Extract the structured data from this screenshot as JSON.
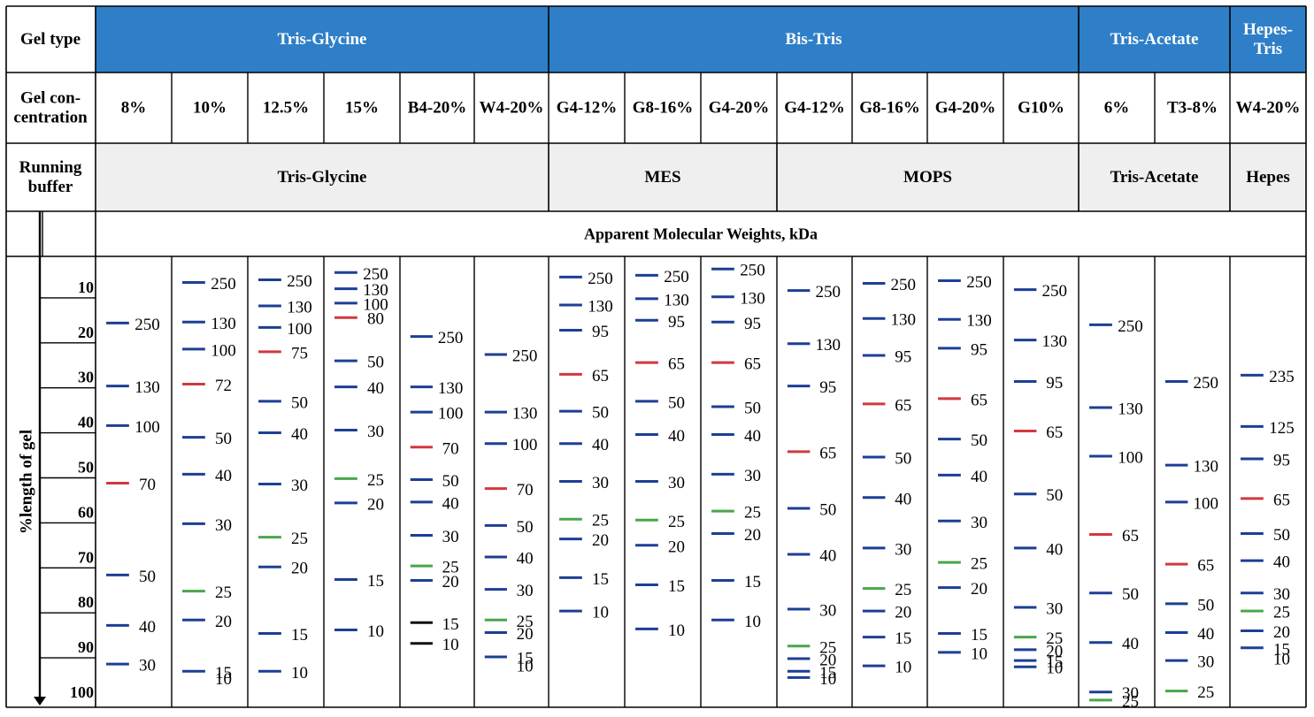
{
  "header": {
    "row1_label": "Gel type",
    "row2_label": [
      "Gel con-",
      "centration"
    ],
    "row3_label": [
      "Running",
      "buffer"
    ],
    "apparent_mw": "Apparent Molecular Weights, kDa",
    "yaxis_label": "%length of gel",
    "yticks": [
      "10",
      "20",
      "30",
      "40",
      "50",
      "60",
      "70",
      "80",
      "90",
      "100"
    ]
  },
  "gel_types": [
    {
      "label": [
        "Tris-Glycine"
      ],
      "span": [
        0,
        5
      ]
    },
    {
      "label": [
        "Bis-Tris"
      ],
      "span": [
        6,
        12
      ]
    },
    {
      "label": [
        "Tris-Acetate"
      ],
      "span": [
        13,
        14
      ]
    },
    {
      "label": [
        "Hepes-",
        "Tris"
      ],
      "span": [
        15,
        15
      ]
    }
  ],
  "buffers": [
    {
      "label": "Tris-Glycine",
      "span": [
        0,
        5
      ]
    },
    {
      "label": "MES",
      "span": [
        6,
        8
      ]
    },
    {
      "label": "MOPS",
      "span": [
        9,
        12
      ]
    },
    {
      "label": "Tris-Acetate",
      "span": [
        13,
        14
      ]
    },
    {
      "label": "Hepes",
      "span": [
        15,
        15
      ]
    }
  ],
  "colors": {
    "gel_type_bg": "#2e7fc8",
    "buffer_bg": "#efefef",
    "blue_band": "#1c3f94",
    "red_band": "#d0393f",
    "green_band": "#4aa64a",
    "black_band": "#111111"
  },
  "chart_data": {
    "type": "table",
    "columns": [
      {
        "conc": "8%",
        "bands": [
          {
            "kda": "250",
            "pos": 14.6,
            "color": "blue"
          },
          {
            "kda": "130",
            "pos": 28.6,
            "color": "blue"
          },
          {
            "kda": "100",
            "pos": 37.4,
            "color": "blue"
          },
          {
            "kda": "70",
            "pos": 50.2,
            "color": "red"
          },
          {
            "kda": "50",
            "pos": 70.6,
            "color": "blue"
          },
          {
            "kda": "40",
            "pos": 81.8,
            "color": "blue"
          },
          {
            "kda": "30",
            "pos": 90.4,
            "color": "blue"
          }
        ]
      },
      {
        "conc": "10%",
        "bands": [
          {
            "kda": "250",
            "pos": 5.6,
            "color": "blue"
          },
          {
            "kda": "130",
            "pos": 14.4,
            "color": "blue"
          },
          {
            "kda": "100",
            "pos": 20.4,
            "color": "blue"
          },
          {
            "kda": "72",
            "pos": 28.2,
            "color": "red"
          },
          {
            "kda": "50",
            "pos": 40.0,
            "color": "blue"
          },
          {
            "kda": "40",
            "pos": 48.2,
            "color": "blue"
          },
          {
            "kda": "30",
            "pos": 59.2,
            "color": "blue"
          },
          {
            "kda": "25",
            "pos": 74.2,
            "color": "green"
          },
          {
            "kda": "20",
            "pos": 80.6,
            "color": "blue"
          },
          {
            "kda": "15",
            "pos": 92.0,
            "color": "blue"
          },
          {
            "kda": "10",
            "pos": 93.4,
            "color": "blue",
            "line": false
          }
        ]
      },
      {
        "conc": "12.5%",
        "bands": [
          {
            "kda": "250",
            "pos": 5.0,
            "color": "blue"
          },
          {
            "kda": "130",
            "pos": 10.8,
            "color": "blue"
          },
          {
            "kda": "100",
            "pos": 15.6,
            "color": "blue"
          },
          {
            "kda": "75",
            "pos": 21.0,
            "color": "red"
          },
          {
            "kda": "50",
            "pos": 32.0,
            "color": "blue"
          },
          {
            "kda": "40",
            "pos": 39.0,
            "color": "blue"
          },
          {
            "kda": "30",
            "pos": 50.4,
            "color": "blue"
          },
          {
            "kda": "25",
            "pos": 62.2,
            "color": "green"
          },
          {
            "kda": "20",
            "pos": 68.8,
            "color": "blue"
          },
          {
            "kda": "15",
            "pos": 83.6,
            "color": "blue"
          },
          {
            "kda": "10",
            "pos": 92.0,
            "color": "blue"
          }
        ]
      },
      {
        "conc": "15%",
        "bands": [
          {
            "kda": "250",
            "pos": 3.4,
            "color": "blue"
          },
          {
            "kda": "130",
            "pos": 7.0,
            "color": "blue"
          },
          {
            "kda": "100",
            "pos": 10.2,
            "color": "blue"
          },
          {
            "kda": "80",
            "pos": 13.4,
            "color": "red"
          },
          {
            "kda": "50",
            "pos": 23.0,
            "color": "blue"
          },
          {
            "kda": "40",
            "pos": 28.8,
            "color": "blue"
          },
          {
            "kda": "30",
            "pos": 38.4,
            "color": "blue"
          },
          {
            "kda": "25",
            "pos": 49.2,
            "color": "green"
          },
          {
            "kda": "20",
            "pos": 54.6,
            "color": "blue"
          },
          {
            "kda": "15",
            "pos": 71.6,
            "color": "blue"
          },
          {
            "kda": "10",
            "pos": 82.8,
            "color": "blue"
          }
        ]
      },
      {
        "conc": "B4-20%",
        "bands": [
          {
            "kda": "250",
            "pos": 17.6,
            "color": "blue"
          },
          {
            "kda": "130",
            "pos": 28.8,
            "color": "blue"
          },
          {
            "kda": "100",
            "pos": 34.4,
            "color": "blue"
          },
          {
            "kda": "70",
            "pos": 42.2,
            "color": "red"
          },
          {
            "kda": "50",
            "pos": 49.4,
            "color": "blue"
          },
          {
            "kda": "40",
            "pos": 54.4,
            "color": "blue"
          },
          {
            "kda": "30",
            "pos": 61.8,
            "color": "blue"
          },
          {
            "kda": "25",
            "pos": 68.6,
            "color": "green"
          },
          {
            "kda": "20",
            "pos": 71.8,
            "color": "blue"
          },
          {
            "kda": "15",
            "pos": 81.2,
            "color": "black"
          },
          {
            "kda": "10",
            "pos": 85.8,
            "color": "black"
          }
        ]
      },
      {
        "conc": "W4-20%",
        "bands": [
          {
            "kda": "250",
            "pos": 21.6,
            "color": "blue"
          },
          {
            "kda": "130",
            "pos": 34.4,
            "color": "blue"
          },
          {
            "kda": "100",
            "pos": 41.4,
            "color": "blue"
          },
          {
            "kda": "70",
            "pos": 51.4,
            "color": "red"
          },
          {
            "kda": "50",
            "pos": 59.6,
            "color": "blue"
          },
          {
            "kda": "40",
            "pos": 66.6,
            "color": "blue"
          },
          {
            "kda": "30",
            "pos": 73.8,
            "color": "blue"
          },
          {
            "kda": "25",
            "pos": 80.6,
            "color": "green"
          },
          {
            "kda": "20",
            "pos": 83.4,
            "color": "blue"
          },
          {
            "kda": "15",
            "pos": 88.8,
            "color": "blue"
          },
          {
            "kda": "10",
            "pos": 90.6,
            "color": "blue",
            "line": false
          }
        ]
      },
      {
        "conc": "G4-12%",
        "bands": [
          {
            "kda": "250",
            "pos": 4.4,
            "color": "blue"
          },
          {
            "kda": "130",
            "pos": 10.6,
            "color": "blue"
          },
          {
            "kda": "95",
            "pos": 16.2,
            "color": "blue"
          },
          {
            "kda": "65",
            "pos": 26.0,
            "color": "red"
          },
          {
            "kda": "50",
            "pos": 34.2,
            "color": "blue"
          },
          {
            "kda": "40",
            "pos": 41.4,
            "color": "blue"
          },
          {
            "kda": "30",
            "pos": 49.8,
            "color": "blue"
          },
          {
            "kda": "25",
            "pos": 58.2,
            "color": "green"
          },
          {
            "kda": "20",
            "pos": 62.6,
            "color": "blue"
          },
          {
            "kda": "15",
            "pos": 71.2,
            "color": "blue"
          },
          {
            "kda": "10",
            "pos": 78.6,
            "color": "blue"
          }
        ]
      },
      {
        "conc": "G8-16%",
        "bands": [
          {
            "kda": "250",
            "pos": 4.0,
            "color": "blue"
          },
          {
            "kda": "130",
            "pos": 9.2,
            "color": "blue"
          },
          {
            "kda": "95",
            "pos": 14.0,
            "color": "blue"
          },
          {
            "kda": "65",
            "pos": 23.4,
            "color": "red"
          },
          {
            "kda": "50",
            "pos": 32.0,
            "color": "blue"
          },
          {
            "kda": "40",
            "pos": 39.4,
            "color": "blue"
          },
          {
            "kda": "30",
            "pos": 49.8,
            "color": "blue"
          },
          {
            "kda": "25",
            "pos": 58.4,
            "color": "green"
          },
          {
            "kda": "20",
            "pos": 64.0,
            "color": "blue"
          },
          {
            "kda": "15",
            "pos": 72.8,
            "color": "blue"
          },
          {
            "kda": "10",
            "pos": 82.6,
            "color": "blue"
          }
        ]
      },
      {
        "conc": "G4-20%",
        "bands": [
          {
            "kda": "250",
            "pos": 2.6,
            "color": "blue"
          },
          {
            "kda": "130",
            "pos": 8.8,
            "color": "blue"
          },
          {
            "kda": "95",
            "pos": 14.4,
            "color": "blue"
          },
          {
            "kda": "65",
            "pos": 23.4,
            "color": "red"
          },
          {
            "kda": "50",
            "pos": 33.2,
            "color": "blue"
          },
          {
            "kda": "40",
            "pos": 39.4,
            "color": "blue"
          },
          {
            "kda": "30",
            "pos": 48.2,
            "color": "blue"
          },
          {
            "kda": "25",
            "pos": 56.4,
            "color": "green"
          },
          {
            "kda": "20",
            "pos": 61.4,
            "color": "blue"
          },
          {
            "kda": "15",
            "pos": 71.8,
            "color": "blue"
          },
          {
            "kda": "10",
            "pos": 80.6,
            "color": "blue"
          }
        ]
      },
      {
        "conc": "G4-12%",
        "bands": [
          {
            "kda": "250",
            "pos": 7.4,
            "color": "blue"
          },
          {
            "kda": "130",
            "pos": 19.2,
            "color": "blue"
          },
          {
            "kda": "95",
            "pos": 28.6,
            "color": "blue"
          },
          {
            "kda": "65",
            "pos": 43.2,
            "color": "red"
          },
          {
            "kda": "50",
            "pos": 55.8,
            "color": "blue"
          },
          {
            "kda": "40",
            "pos": 66.0,
            "color": "blue"
          },
          {
            "kda": "30",
            "pos": 78.2,
            "color": "blue"
          },
          {
            "kda": "25",
            "pos": 86.4,
            "color": "green"
          },
          {
            "kda": "20",
            "pos": 89.2,
            "color": "blue"
          },
          {
            "kda": "15",
            "pos": 92.0,
            "color": "blue"
          },
          {
            "kda": "10",
            "pos": 93.4,
            "color": "blue"
          }
        ]
      },
      {
        "conc": "G8-16%",
        "bands": [
          {
            "kda": "250",
            "pos": 5.8,
            "color": "blue"
          },
          {
            "kda": "130",
            "pos": 13.6,
            "color": "blue"
          },
          {
            "kda": "95",
            "pos": 21.8,
            "color": "blue"
          },
          {
            "kda": "65",
            "pos": 32.6,
            "color": "red"
          },
          {
            "kda": "50",
            "pos": 44.4,
            "color": "blue"
          },
          {
            "kda": "40",
            "pos": 53.4,
            "color": "blue"
          },
          {
            "kda": "30",
            "pos": 64.6,
            "color": "blue"
          },
          {
            "kda": "25",
            "pos": 73.6,
            "color": "green"
          },
          {
            "kda": "20",
            "pos": 78.6,
            "color": "blue"
          },
          {
            "kda": "15",
            "pos": 84.4,
            "color": "blue"
          },
          {
            "kda": "10",
            "pos": 90.8,
            "color": "blue"
          }
        ]
      },
      {
        "conc": "G4-20%",
        "bands": [
          {
            "kda": "250",
            "pos": 5.2,
            "color": "blue"
          },
          {
            "kda": "130",
            "pos": 13.8,
            "color": "blue"
          },
          {
            "kda": "95",
            "pos": 20.2,
            "color": "blue"
          },
          {
            "kda": "65",
            "pos": 31.4,
            "color": "red"
          },
          {
            "kda": "50",
            "pos": 40.4,
            "color": "blue"
          },
          {
            "kda": "40",
            "pos": 48.4,
            "color": "blue"
          },
          {
            "kda": "30",
            "pos": 58.6,
            "color": "blue"
          },
          {
            "kda": "25",
            "pos": 67.8,
            "color": "green"
          },
          {
            "kda": "20",
            "pos": 73.4,
            "color": "blue"
          },
          {
            "kda": "15",
            "pos": 83.6,
            "color": "blue"
          },
          {
            "kda": "10",
            "pos": 87.8,
            "color": "blue"
          }
        ]
      },
      {
        "conc": "G10%",
        "bands": [
          {
            "kda": "250",
            "pos": 7.2,
            "color": "blue"
          },
          {
            "kda": "130",
            "pos": 18.4,
            "color": "blue"
          },
          {
            "kda": "95",
            "pos": 27.6,
            "color": "blue"
          },
          {
            "kda": "65",
            "pos": 38.6,
            "color": "red"
          },
          {
            "kda": "50",
            "pos": 52.6,
            "color": "blue"
          },
          {
            "kda": "40",
            "pos": 64.6,
            "color": "blue"
          },
          {
            "kda": "30",
            "pos": 77.8,
            "color": "blue"
          },
          {
            "kda": "25",
            "pos": 84.4,
            "color": "green"
          },
          {
            "kda": "20",
            "pos": 87.2,
            "color": "blue"
          },
          {
            "kda": "15",
            "pos": 89.6,
            "color": "blue"
          },
          {
            "kda": "10",
            "pos": 91.0,
            "color": "blue"
          }
        ]
      },
      {
        "conc": "6%",
        "bands": [
          {
            "kda": "250",
            "pos": 15.0,
            "color": "blue"
          },
          {
            "kda": "130",
            "pos": 33.4,
            "color": "blue"
          },
          {
            "kda": "100",
            "pos": 44.2,
            "color": "blue"
          },
          {
            "kda": "65",
            "pos": 61.6,
            "color": "red"
          },
          {
            "kda": "50",
            "pos": 74.6,
            "color": "blue"
          },
          {
            "kda": "40",
            "pos": 85.6,
            "color": "blue"
          },
          {
            "kda": "30",
            "pos": 96.6,
            "color": "blue"
          },
          {
            "kda": "25",
            "pos": 98.4,
            "color": "green"
          }
        ]
      },
      {
        "conc": "T3-8%",
        "bands": [
          {
            "kda": "250",
            "pos": 27.6,
            "color": "blue"
          },
          {
            "kda": "130",
            "pos": 46.2,
            "color": "blue"
          },
          {
            "kda": "100",
            "pos": 54.4,
            "color": "blue"
          },
          {
            "kda": "65",
            "pos": 68.2,
            "color": "red"
          },
          {
            "kda": "50",
            "pos": 77.0,
            "color": "blue"
          },
          {
            "kda": "40",
            "pos": 83.4,
            "color": "blue"
          },
          {
            "kda": "30",
            "pos": 89.6,
            "color": "blue"
          },
          {
            "kda": "25",
            "pos": 96.4,
            "color": "green"
          }
        ]
      },
      {
        "conc": "W4-20%",
        "bands": [
          {
            "kda": "235",
            "pos": 26.2,
            "color": "blue"
          },
          {
            "kda": "125",
            "pos": 37.6,
            "color": "blue"
          },
          {
            "kda": "95",
            "pos": 44.8,
            "color": "blue"
          },
          {
            "kda": "65",
            "pos": 53.6,
            "color": "red"
          },
          {
            "kda": "50",
            "pos": 61.4,
            "color": "blue"
          },
          {
            "kda": "40",
            "pos": 67.4,
            "color": "blue"
          },
          {
            "kda": "30",
            "pos": 74.6,
            "color": "blue"
          },
          {
            "kda": "25",
            "pos": 78.6,
            "color": "green"
          },
          {
            "kda": "20",
            "pos": 83.0,
            "color": "blue"
          },
          {
            "kda": "15",
            "pos": 86.8,
            "color": "blue"
          },
          {
            "kda": "10",
            "pos": 89.0,
            "color": "blue",
            "line": false
          }
        ]
      }
    ]
  }
}
